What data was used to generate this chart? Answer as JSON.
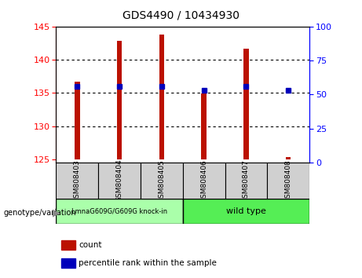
{
  "title": "GDS4490 / 10434930",
  "categories": [
    "GSM808403",
    "GSM808404",
    "GSM808405",
    "GSM808406",
    "GSM808407",
    "GSM808408"
  ],
  "bar_bottoms": [
    125,
    125,
    125,
    125,
    125,
    125
  ],
  "bar_tops": [
    136.7,
    142.8,
    143.8,
    134.9,
    141.7,
    125.3
  ],
  "percentile_ranks": [
    56,
    56,
    56,
    53,
    56,
    53
  ],
  "ylim_left": [
    124.5,
    145
  ],
  "ylim_right": [
    0,
    100
  ],
  "yticks_left": [
    125,
    130,
    135,
    140,
    145
  ],
  "yticks_right": [
    0,
    25,
    50,
    75,
    100
  ],
  "bar_color": "#bb1100",
  "dot_color": "#0000bb",
  "group1_label": "LmnaG609G/G609G knock-in",
  "group2_label": "wild type",
  "group1_color": "#aaffaa",
  "group2_color": "#55ee55",
  "group1_indices": [
    0,
    1,
    2
  ],
  "group2_indices": [
    3,
    4,
    5
  ],
  "legend_count_label": "count",
  "legend_percentile_label": "percentile rank within the sample",
  "genotype_label": "genotype/variation",
  "bar_width": 0.12,
  "tick_label_bg": "#d0d0d0"
}
